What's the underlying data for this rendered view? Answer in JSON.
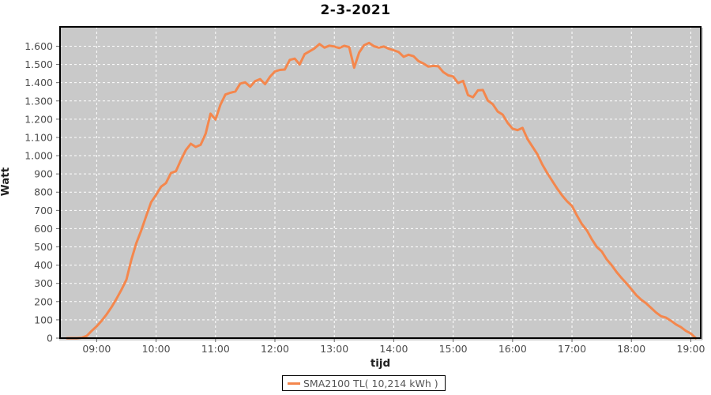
{
  "title": "2-3-2021",
  "legend": {
    "label": "SMA2100 TL( 10,214 kWh )"
  },
  "colors": {
    "series": "#f4874d",
    "plot_background": "#c9c9c9",
    "gridline": "#ffffff",
    "plot_border": "#000000",
    "axis_shadow": "#9e9e9e",
    "tick": "#666666",
    "tick_label": "#4d4d4d",
    "title_text": "#0b0b0b",
    "axis_label_text": "#222222",
    "page_background": "#ffffff"
  },
  "chart_data": {
    "type": "line",
    "title": "2-3-2021",
    "xlabel": "tijd",
    "ylabel": "Watt",
    "x_unit": "minutes_since_midnight",
    "x_range_minutes": [
      503,
      1150
    ],
    "ylim": [
      0,
      1706
    ],
    "grid": true,
    "grid_style": "white-dashed-on-gray",
    "legend_position": "bottom-center",
    "x_ticks": [
      {
        "minutes": 540,
        "label": "09:00"
      },
      {
        "minutes": 600,
        "label": "10:00"
      },
      {
        "minutes": 660,
        "label": "11:00"
      },
      {
        "minutes": 720,
        "label": "12:00"
      },
      {
        "minutes": 780,
        "label": "13:00"
      },
      {
        "minutes": 840,
        "label": "14:00"
      },
      {
        "minutes": 900,
        "label": "15:00"
      },
      {
        "minutes": 960,
        "label": "16:00"
      },
      {
        "minutes": 1020,
        "label": "17:00"
      },
      {
        "minutes": 1080,
        "label": "18:00"
      },
      {
        "minutes": 1140,
        "label": "19:00"
      }
    ],
    "y_ticks": [
      {
        "value": 0,
        "label": "0"
      },
      {
        "value": 100,
        "label": "100"
      },
      {
        "value": 200,
        "label": "200"
      },
      {
        "value": 300,
        "label": "300"
      },
      {
        "value": 400,
        "label": "400"
      },
      {
        "value": 500,
        "label": "500"
      },
      {
        "value": 600,
        "label": "600"
      },
      {
        "value": 700,
        "label": "700"
      },
      {
        "value": 800,
        "label": "800"
      },
      {
        "value": 900,
        "label": "900"
      },
      {
        "value": 1000,
        "label": "1.000"
      },
      {
        "value": 1100,
        "label": "1.100"
      },
      {
        "value": 1200,
        "label": "1.200"
      },
      {
        "value": 1300,
        "label": "1.300"
      },
      {
        "value": 1400,
        "label": "1.400"
      },
      {
        "value": 1500,
        "label": "1.500"
      },
      {
        "value": 1600,
        "label": "1.600"
      }
    ],
    "series": [
      {
        "name": "SMA2100 TL( 10,214 kWh )",
        "color": "#f4874d",
        "points": [
          [
            510,
            0
          ],
          [
            515,
            0
          ],
          [
            520,
            0
          ],
          [
            525,
            2
          ],
          [
            530,
            12
          ],
          [
            535,
            40
          ],
          [
            540,
            65
          ],
          [
            545,
            95
          ],
          [
            550,
            130
          ],
          [
            555,
            170
          ],
          [
            560,
            215
          ],
          [
            565,
            265
          ],
          [
            570,
            320
          ],
          [
            575,
            430
          ],
          [
            580,
            520
          ],
          [
            585,
            590
          ],
          [
            590,
            670
          ],
          [
            595,
            745
          ],
          [
            600,
            785
          ],
          [
            605,
            830
          ],
          [
            610,
            850
          ],
          [
            615,
            905
          ],
          [
            620,
            915
          ],
          [
            625,
            975
          ],
          [
            630,
            1030
          ],
          [
            635,
            1065
          ],
          [
            640,
            1048
          ],
          [
            645,
            1060
          ],
          [
            650,
            1120
          ],
          [
            655,
            1230
          ],
          [
            660,
            1198
          ],
          [
            665,
            1280
          ],
          [
            670,
            1335
          ],
          [
            675,
            1345
          ],
          [
            680,
            1352
          ],
          [
            685,
            1395
          ],
          [
            690,
            1402
          ],
          [
            695,
            1378
          ],
          [
            700,
            1408
          ],
          [
            705,
            1420
          ],
          [
            710,
            1392
          ],
          [
            715,
            1432
          ],
          [
            720,
            1462
          ],
          [
            725,
            1470
          ],
          [
            730,
            1472
          ],
          [
            735,
            1525
          ],
          [
            740,
            1532
          ],
          [
            745,
            1500
          ],
          [
            750,
            1556
          ],
          [
            755,
            1572
          ],
          [
            760,
            1588
          ],
          [
            765,
            1612
          ],
          [
            770,
            1592
          ],
          [
            775,
            1603
          ],
          [
            780,
            1598
          ],
          [
            785,
            1590
          ],
          [
            790,
            1602
          ],
          [
            795,
            1595
          ],
          [
            800,
            1482
          ],
          [
            805,
            1565
          ],
          [
            810,
            1605
          ],
          [
            815,
            1618
          ],
          [
            820,
            1600
          ],
          [
            825,
            1592
          ],
          [
            830,
            1598
          ],
          [
            835,
            1586
          ],
          [
            840,
            1578
          ],
          [
            845,
            1568
          ],
          [
            850,
            1542
          ],
          [
            855,
            1553
          ],
          [
            860,
            1545
          ],
          [
            865,
            1518
          ],
          [
            870,
            1505
          ],
          [
            875,
            1488
          ],
          [
            880,
            1492
          ],
          [
            885,
            1490
          ],
          [
            890,
            1458
          ],
          [
            895,
            1440
          ],
          [
            900,
            1434
          ],
          [
            905,
            1398
          ],
          [
            910,
            1410
          ],
          [
            915,
            1332
          ],
          [
            920,
            1320
          ],
          [
            925,
            1358
          ],
          [
            930,
            1360
          ],
          [
            935,
            1302
          ],
          [
            940,
            1282
          ],
          [
            945,
            1242
          ],
          [
            950,
            1225
          ],
          [
            955,
            1180
          ],
          [
            960,
            1148
          ],
          [
            965,
            1140
          ],
          [
            970,
            1152
          ],
          [
            975,
            1092
          ],
          [
            980,
            1050
          ],
          [
            985,
            1008
          ],
          [
            990,
            952
          ],
          [
            995,
            905
          ],
          [
            1000,
            862
          ],
          [
            1005,
            820
          ],
          [
            1010,
            782
          ],
          [
            1015,
            750
          ],
          [
            1020,
            725
          ],
          [
            1025,
            672
          ],
          [
            1030,
            625
          ],
          [
            1035,
            590
          ],
          [
            1040,
            542
          ],
          [
            1045,
            500
          ],
          [
            1050,
            475
          ],
          [
            1055,
            432
          ],
          [
            1060,
            400
          ],
          [
            1065,
            362
          ],
          [
            1070,
            330
          ],
          [
            1075,
            300
          ],
          [
            1080,
            268
          ],
          [
            1085,
            235
          ],
          [
            1090,
            210
          ],
          [
            1095,
            190
          ],
          [
            1100,
            165
          ],
          [
            1105,
            140
          ],
          [
            1110,
            120
          ],
          [
            1115,
            112
          ],
          [
            1120,
            95
          ],
          [
            1125,
            75
          ],
          [
            1130,
            60
          ],
          [
            1135,
            40
          ],
          [
            1140,
            25
          ],
          [
            1145,
            0
          ]
        ]
      }
    ]
  }
}
